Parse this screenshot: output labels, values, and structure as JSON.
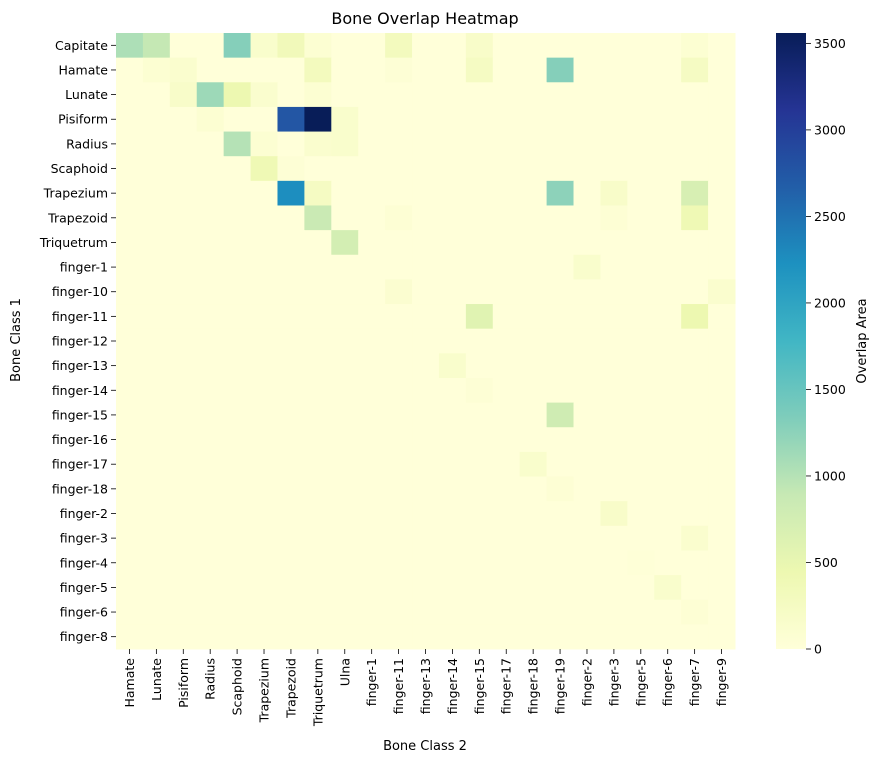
{
  "chart_data": {
    "type": "heatmap",
    "title": "Bone Overlap Heatmap",
    "xlabel": "Bone Class 2",
    "ylabel": "Bone Class 1",
    "colorbar_label": "Overlap Area",
    "colormap": "YlGnBu",
    "value_range": [
      0,
      3560
    ],
    "colorbar_ticks": [
      0,
      500,
      1000,
      1500,
      2000,
      2500,
      3000,
      3500
    ],
    "x": [
      "Hamate",
      "Lunate",
      "Pisiform",
      "Radius",
      "Scaphoid",
      "Trapezium",
      "Trapezoid",
      "Triquetrum",
      "Ulna",
      "finger-1",
      "finger-11",
      "finger-13",
      "finger-14",
      "finger-15",
      "finger-17",
      "finger-18",
      "finger-19",
      "finger-2",
      "finger-3",
      "finger-5",
      "finger-6",
      "finger-7",
      "finger-9"
    ],
    "y": [
      "Capitate",
      "Hamate",
      "Lunate",
      "Pisiform",
      "Radius",
      "Scaphoid",
      "Trapezium",
      "Trapezoid",
      "Triquetrum",
      "finger-1",
      "finger-10",
      "finger-11",
      "finger-12",
      "finger-13",
      "finger-14",
      "finger-15",
      "finger-16",
      "finger-17",
      "finger-18",
      "finger-2",
      "finger-3",
      "finger-4",
      "finger-5",
      "finger-6",
      "finger-8"
    ],
    "values": [
      [
        1050,
        900,
        0,
        0,
        1300,
        150,
        350,
        80,
        0,
        0,
        300,
        0,
        0,
        180,
        0,
        0,
        0,
        0,
        0,
        0,
        0,
        80,
        0
      ],
      [
        0,
        80,
        120,
        0,
        0,
        0,
        0,
        300,
        0,
        0,
        50,
        0,
        0,
        250,
        0,
        0,
        1300,
        0,
        0,
        0,
        0,
        250,
        0
      ],
      [
        0,
        0,
        180,
        1150,
        450,
        120,
        0,
        80,
        0,
        0,
        0,
        0,
        0,
        0,
        0,
        0,
        0,
        0,
        0,
        0,
        0,
        0,
        0
      ],
      [
        0,
        0,
        0,
        80,
        0,
        0,
        2750,
        3560,
        150,
        0,
        0,
        0,
        0,
        0,
        0,
        0,
        0,
        0,
        0,
        0,
        0,
        0,
        0
      ],
      [
        0,
        0,
        0,
        0,
        1000,
        80,
        0,
        120,
        150,
        0,
        0,
        0,
        0,
        0,
        0,
        0,
        0,
        0,
        0,
        0,
        0,
        0,
        0
      ],
      [
        0,
        0,
        0,
        0,
        0,
        400,
        50,
        0,
        0,
        0,
        0,
        0,
        0,
        0,
        0,
        0,
        0,
        0,
        0,
        0,
        0,
        0,
        0
      ],
      [
        0,
        0,
        0,
        0,
        0,
        0,
        2250,
        250,
        0,
        0,
        0,
        0,
        0,
        0,
        0,
        0,
        1250,
        0,
        180,
        0,
        0,
        700,
        0
      ],
      [
        0,
        0,
        0,
        0,
        0,
        0,
        0,
        850,
        0,
        0,
        60,
        0,
        0,
        0,
        0,
        0,
        0,
        0,
        60,
        0,
        0,
        400,
        0
      ],
      [
        0,
        0,
        0,
        0,
        0,
        0,
        0,
        0,
        750,
        0,
        0,
        0,
        0,
        0,
        0,
        0,
        0,
        0,
        0,
        0,
        0,
        0,
        0
      ],
      [
        0,
        0,
        0,
        0,
        0,
        0,
        0,
        0,
        0,
        0,
        0,
        0,
        0,
        0,
        0,
        0,
        0,
        150,
        0,
        0,
        0,
        0,
        0
      ],
      [
        0,
        0,
        0,
        0,
        0,
        0,
        0,
        0,
        0,
        0,
        100,
        0,
        0,
        0,
        0,
        0,
        0,
        0,
        0,
        0,
        0,
        0,
        120
      ],
      [
        0,
        0,
        0,
        0,
        0,
        0,
        0,
        0,
        0,
        0,
        0,
        0,
        0,
        600,
        0,
        0,
        0,
        0,
        0,
        0,
        0,
        450,
        0
      ],
      [
        0,
        0,
        0,
        0,
        0,
        0,
        0,
        0,
        0,
        0,
        0,
        0,
        0,
        0,
        0,
        0,
        0,
        0,
        0,
        0,
        0,
        0,
        0
      ],
      [
        0,
        0,
        0,
        0,
        0,
        0,
        0,
        0,
        0,
        0,
        0,
        0,
        150,
        0,
        0,
        0,
        0,
        0,
        0,
        0,
        0,
        0,
        0
      ],
      [
        0,
        0,
        0,
        0,
        0,
        0,
        0,
        0,
        0,
        0,
        0,
        0,
        0,
        40,
        0,
        0,
        0,
        0,
        0,
        0,
        0,
        0,
        0
      ],
      [
        0,
        0,
        0,
        0,
        0,
        0,
        0,
        0,
        0,
        0,
        0,
        0,
        0,
        0,
        0,
        0,
        800,
        0,
        0,
        0,
        0,
        0,
        0
      ],
      [
        0,
        0,
        0,
        0,
        0,
        0,
        0,
        0,
        0,
        0,
        0,
        0,
        0,
        0,
        0,
        0,
        0,
        0,
        0,
        0,
        0,
        0,
        0
      ],
      [
        0,
        0,
        0,
        0,
        0,
        0,
        0,
        0,
        0,
        0,
        0,
        0,
        0,
        0,
        0,
        150,
        0,
        0,
        0,
        0,
        0,
        0,
        0
      ],
      [
        0,
        0,
        0,
        0,
        0,
        0,
        0,
        0,
        0,
        0,
        0,
        0,
        0,
        0,
        0,
        0,
        60,
        0,
        0,
        0,
        0,
        0,
        0
      ],
      [
        0,
        0,
        0,
        0,
        0,
        0,
        0,
        0,
        0,
        0,
        0,
        0,
        0,
        0,
        0,
        0,
        0,
        0,
        180,
        0,
        0,
        0,
        0
      ],
      [
        0,
        0,
        0,
        0,
        0,
        0,
        0,
        0,
        0,
        0,
        0,
        0,
        0,
        0,
        0,
        0,
        0,
        0,
        0,
        0,
        0,
        120,
        0
      ],
      [
        0,
        0,
        0,
        0,
        0,
        0,
        0,
        0,
        0,
        0,
        0,
        0,
        0,
        0,
        0,
        0,
        0,
        0,
        0,
        20,
        0,
        0,
        0
      ],
      [
        0,
        0,
        0,
        0,
        0,
        0,
        0,
        0,
        0,
        0,
        0,
        0,
        0,
        0,
        0,
        0,
        0,
        0,
        0,
        0,
        150,
        0,
        0
      ],
      [
        0,
        0,
        0,
        0,
        0,
        0,
        0,
        0,
        0,
        0,
        0,
        0,
        0,
        0,
        0,
        0,
        0,
        0,
        0,
        0,
        0,
        60,
        0
      ],
      [
        0,
        0,
        0,
        0,
        0,
        0,
        0,
        0,
        0,
        0,
        0,
        0,
        0,
        0,
        0,
        0,
        0,
        0,
        0,
        0,
        0,
        0,
        0
      ]
    ]
  }
}
